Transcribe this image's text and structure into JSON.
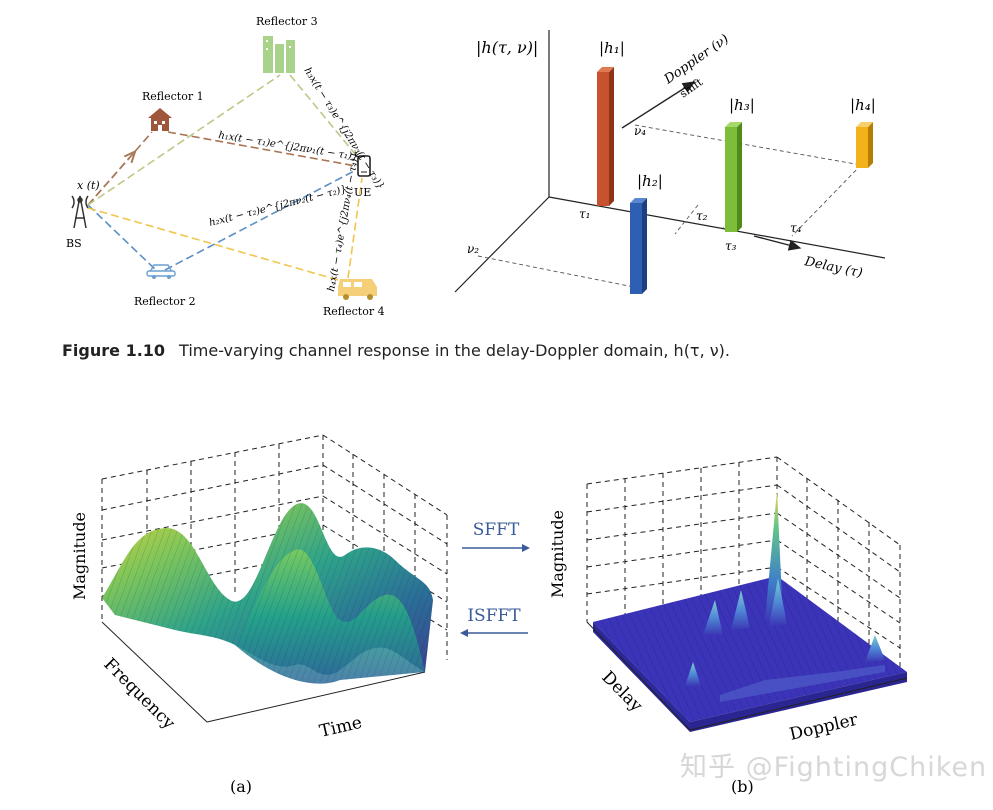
{
  "multipath": {
    "tx_signal": "x (t)",
    "bs_label": "BS",
    "ue_label": "UE",
    "reflectors": [
      "Reflector 1",
      "Reflector 2",
      "Reflector 3",
      "Reflector 4"
    ],
    "path_gain_labels": [
      "h₁x(t − τ₁)e^{j2πν₁(t − τ₁)}",
      "h₂x(t − τ₂)e^{j2πν₂(t − τ₂)}",
      "h₃x(t − τ₃)e^{j2πν₃(t − τ₃)}",
      "h₄x(t − τ₄)e^{j2πν₄(t − τ₄)}"
    ],
    "path_colors": {
      "r1": "#a87655",
      "r2": "#5b8fc4",
      "r3": "#bcc986",
      "r4": "#f0c64f"
    }
  },
  "delay_doppler": {
    "z_label": "|h(τ, ν)|",
    "doppler_axis_label": "Doppler (ν)",
    "doppler_axis_sub": "shift",
    "delay_axis_label": "Delay (τ)",
    "bar_labels": [
      "|h₁|",
      "|h₂|",
      "|h₃|",
      "|h₄|"
    ],
    "tau_labels": [
      "τ₁",
      "τ₂",
      "τ₃",
      "τ₄"
    ],
    "nu_labels": [
      "ν₄",
      "ν₂"
    ],
    "bar_colors": [
      "#c8512e",
      "#2f5fb2",
      "#7cbd3a",
      "#f3b21b"
    ]
  },
  "caption": {
    "figure_number": "Figure 1.10",
    "text": "Time-varying channel response in the delay-Doppler domain, h(τ, ν)."
  },
  "surface_a": {
    "zlabel": "Magnitude",
    "xlabel": "Frequency",
    "ylabel": "Time",
    "panel": "(a)"
  },
  "transforms": {
    "forward": "SFFT",
    "inverse": "ISFFT",
    "arrow_color": "#3a5a9a"
  },
  "surface_b": {
    "zlabel": "Magnitude",
    "xlabel": "Delay",
    "ylabel": "Doppler",
    "panel": "(b)"
  },
  "watermark": "知乎 @FightingChiken"
}
